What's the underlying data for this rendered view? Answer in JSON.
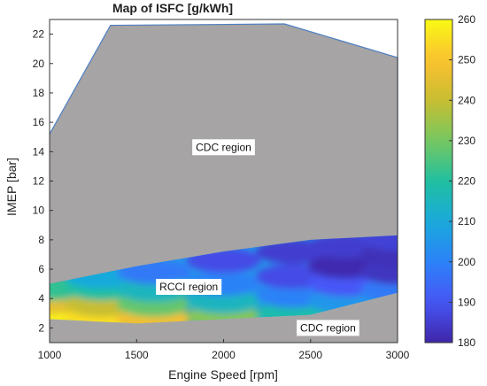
{
  "chart_data": {
    "type": "heatmap",
    "title": "Map of ISFC [g/kWh]",
    "xlabel": "Engine Speed [rpm]",
    "ylabel": "IMEP [bar]",
    "xlim": [
      1000,
      3000
    ],
    "ylim": [
      1,
      23
    ],
    "xticks": [
      1000,
      1500,
      2000,
      2500,
      3000
    ],
    "yticks": [
      2,
      4,
      6,
      8,
      10,
      12,
      14,
      16,
      18,
      20,
      22
    ],
    "colorbar": {
      "label": "",
      "range": [
        180,
        260
      ],
      "ticks": [
        180,
        190,
        200,
        210,
        220,
        230,
        240,
        250,
        260
      ],
      "colormap": "parula"
    },
    "regions": [
      {
        "label": "CDC region",
        "fill": "#a6a4a4",
        "boundary": [
          [
            1000,
            15.2
          ],
          [
            1350,
            22.6
          ],
          [
            2350,
            22.7
          ],
          [
            3000,
            20.4
          ],
          [
            3000,
            8.3
          ],
          [
            1000,
            5.0
          ]
        ]
      },
      {
        "label": "CDC region",
        "fill": "#a6a4a4",
        "boundary": [
          [
            1000,
            2.6
          ],
          [
            1500,
            2.3
          ],
          [
            2500,
            2.9
          ],
          [
            3000,
            4.4
          ],
          [
            3000,
            1
          ],
          [
            1000,
            1
          ]
        ]
      },
      {
        "label": "RCCI region",
        "boundary": [
          [
            1000,
            5.0
          ],
          [
            1500,
            6.2
          ],
          [
            2000,
            7.2
          ],
          [
            2500,
            8.0
          ],
          [
            3000,
            8.3
          ],
          [
            3000,
            4.4
          ],
          [
            2500,
            2.9
          ],
          [
            1500,
            2.3
          ],
          [
            1000,
            2.6
          ]
        ]
      }
    ],
    "region_labels": [
      {
        "text": "CDC region",
        "x": 2000,
        "y": 14.3
      },
      {
        "text": "RCCI region",
        "x": 1800,
        "y": 4.8
      },
      {
        "text": "CDC region",
        "x": 2600,
        "y": 2.0
      }
    ],
    "isfc_samples": [
      {
        "x": 1000,
        "y": 2.9,
        "v": 258
      },
      {
        "x": 1000,
        "y": 3.8,
        "v": 245
      },
      {
        "x": 1000,
        "y": 4.7,
        "v": 222
      },
      {
        "x": 1300,
        "y": 2.7,
        "v": 255
      },
      {
        "x": 1300,
        "y": 3.6,
        "v": 240
      },
      {
        "x": 1300,
        "y": 4.7,
        "v": 220
      },
      {
        "x": 1300,
        "y": 5.5,
        "v": 210
      },
      {
        "x": 1600,
        "y": 2.6,
        "v": 248
      },
      {
        "x": 1600,
        "y": 3.6,
        "v": 228
      },
      {
        "x": 1600,
        "y": 4.6,
        "v": 215
      },
      {
        "x": 1600,
        "y": 5.8,
        "v": 198
      },
      {
        "x": 2000,
        "y": 2.8,
        "v": 232
      },
      {
        "x": 2000,
        "y": 3.8,
        "v": 215
      },
      {
        "x": 2000,
        "y": 5.0,
        "v": 200
      },
      {
        "x": 2000,
        "y": 6.6,
        "v": 188
      },
      {
        "x": 2400,
        "y": 3.0,
        "v": 218
      },
      {
        "x": 2400,
        "y": 4.2,
        "v": 200
      },
      {
        "x": 2400,
        "y": 5.5,
        "v": 188
      },
      {
        "x": 2400,
        "y": 7.2,
        "v": 185
      },
      {
        "x": 2700,
        "y": 3.8,
        "v": 205
      },
      {
        "x": 2700,
        "y": 5.0,
        "v": 190
      },
      {
        "x": 2700,
        "y": 6.2,
        "v": 181
      },
      {
        "x": 2700,
        "y": 7.6,
        "v": 185
      },
      {
        "x": 3000,
        "y": 4.6,
        "v": 198
      },
      {
        "x": 3000,
        "y": 5.8,
        "v": 183
      },
      {
        "x": 3000,
        "y": 7.0,
        "v": 182
      },
      {
        "x": 3000,
        "y": 8.1,
        "v": 186
      }
    ],
    "grid": false,
    "box": true
  }
}
